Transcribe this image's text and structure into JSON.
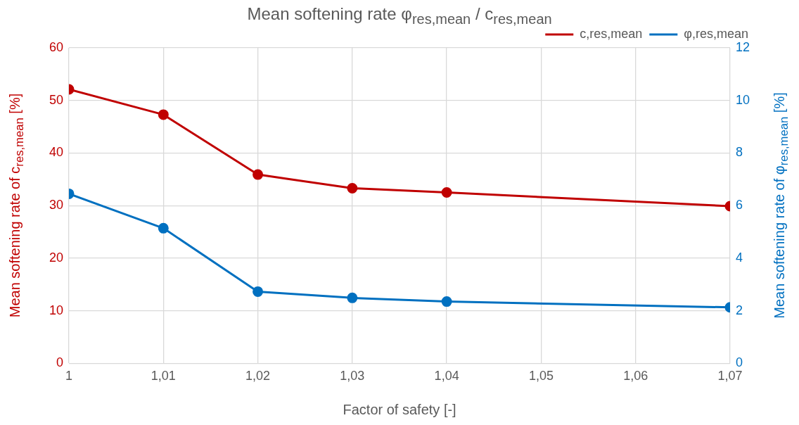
{
  "chart_data": {
    "type": "line",
    "title": "Mean softening rate φ$_{res,mean}$ / c$_{res,mean}$",
    "xlabel": "Factor of safety [-]",
    "ylabel": "Mean softening rate of c$_{res,mean}$ [%]",
    "y2label": "Mean softening rate of φ$_{res,mean}$ [%]",
    "x": [
      1,
      1.01,
      1.02,
      1.03,
      1.04,
      1.07
    ],
    "series": [
      {
        "name": "c,res,mean",
        "color": "#c00000",
        "values": [
          52.1,
          47.3,
          35.9,
          33.3,
          32.5,
          29.9
        ]
      },
      {
        "name": "φ,res,mean",
        "color": "#0070c0",
        "axis": "y2",
        "values": [
          6.45,
          5.14,
          2.73,
          2.49,
          2.35,
          2.13
        ]
      }
    ],
    "xlim": [
      1,
      1.07
    ],
    "xticks": [
      1,
      {
        "value": 1.01,
        "label": "1,01"
      },
      {
        "value": 1.02,
        "label": "1,02"
      },
      {
        "value": 1.03,
        "label": "1,03"
      },
      {
        "value": 1.04,
        "label": "1,04"
      },
      {
        "value": 1.05,
        "label": "1,05"
      },
      {
        "value": 1.06,
        "label": "1,06"
      },
      {
        "value": 1.07,
        "label": "1,07"
      }
    ],
    "ylim": [
      0,
      60
    ],
    "yticks": [
      0,
      10,
      20,
      30,
      40,
      50,
      60
    ],
    "y2lim": [
      0,
      12
    ],
    "y2ticks": [
      0,
      2,
      4,
      6,
      8,
      10,
      12
    ],
    "grid": true,
    "legend": "top right",
    "marker": "circle",
    "line_style": "solid"
  }
}
